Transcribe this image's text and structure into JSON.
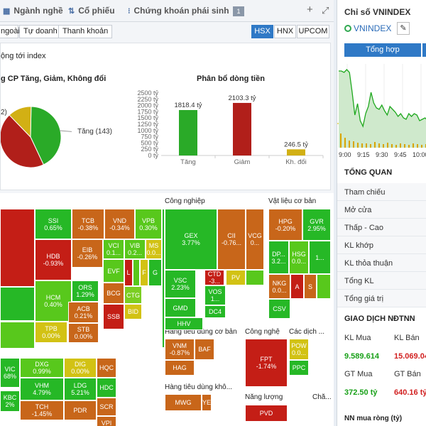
{
  "tabs": [
    {
      "label": "Ngành nghề",
      "icon": "grid-icon"
    },
    {
      "label": "Cổ phiếu",
      "icon": "sliders-icon"
    },
    {
      "label": "Chứng khoán phái sinh",
      "icon": "chart-icon"
    }
  ],
  "tab_badge": "1",
  "filters": [
    "ngoài",
    "Tự doanh",
    "Thanh khoản"
  ],
  "exchanges": [
    {
      "label": "HSX",
      "active": true
    },
    {
      "label": "HNX",
      "active": false
    },
    {
      "label": "UPCOM",
      "active": false
    }
  ],
  "card": {
    "title": "ộng tới index",
    "pie_title": "g CP Tăng, Giảm, Không đổi",
    "pie_labels": [
      "2)",
      "Tăng (143)"
    ],
    "bar_title": "Phân bổ dòng tiền"
  },
  "chart_data": [
    {
      "type": "pie",
      "title": "g CP Tăng, Giảm, Không đổi",
      "categories": [
        "Tăng",
        "Giảm",
        "Không đổi"
      ],
      "values": [
        143,
        150,
        42
      ],
      "colors": [
        "#2aaa28",
        "#b11f1a",
        "#d2b014"
      ]
    },
    {
      "type": "bar",
      "title": "Phân bổ dòng tiền",
      "categories": [
        "Tăng",
        "Giảm",
        "Kh. đổi"
      ],
      "values": [
        1818.4,
        2103.3,
        246.5
      ],
      "data_labels": [
        "1818.4 tỷ",
        "2103.3 tỷ",
        "246.5 tỷ"
      ],
      "yticks": [
        "0 tỷ",
        "250 tỷ",
        "500 tỷ",
        "750 tỷ",
        "1000 tỷ",
        "1250 tỷ",
        "1500 tỷ",
        "1750 tỷ",
        "2000 tỷ",
        "2250 tỷ",
        "2500 tỷ"
      ],
      "ylim": [
        0,
        2500
      ],
      "colors": [
        "#2aaa28",
        "#b11f1a",
        "#d2b014"
      ]
    },
    {
      "type": "line",
      "title": "VNINDEX",
      "xticks": [
        "9:00",
        "9:15",
        "9:30",
        "9:45",
        "10:00"
      ]
    }
  ],
  "treemap": {
    "sectors": [
      "Công nghiệp",
      "Vật liệu cơ bản",
      "Hàng tiêu dùng cơ bản",
      "Công nghệ",
      "Các dịch ...",
      "Hàng tiêu dùng khô...",
      "Năng lượng",
      "Chă..."
    ],
    "tiles": [
      {
        "name": "SSI",
        "change": "0.65%",
        "color": "g1"
      },
      {
        "name": "TCB",
        "change": "-0.38%",
        "color": "o1"
      },
      {
        "name": "VND",
        "change": "-0.34%",
        "color": "o1"
      },
      {
        "name": "VPB",
        "change": "0.30%",
        "color": "g2"
      },
      {
        "name": "HDB",
        "change": "-0.93%",
        "color": "r1"
      },
      {
        "name": "EIB",
        "change": "-0.26%",
        "color": "o1"
      },
      {
        "name": "VCI",
        "change": "0.1...",
        "color": "g2"
      },
      {
        "name": "VIB",
        "change": "0.2...",
        "color": "g2"
      },
      {
        "name": "MS",
        "change": "0.0...",
        "color": "y1"
      },
      {
        "name": "HCM",
        "change": "0.40%",
        "color": "g2"
      },
      {
        "name": "ORS",
        "change": "1.29%",
        "color": "g1"
      },
      {
        "name": "EVF",
        "change": "",
        "color": "g2"
      },
      {
        "name": "L",
        "change": "",
        "color": "r1"
      },
      {
        "name": "",
        "change": "",
        "color": "g2"
      },
      {
        "name": "F",
        "change": "",
        "color": "y1"
      },
      {
        "name": "G",
        "change": "",
        "color": "g1"
      },
      {
        "name": "ACB",
        "change": "0.21%",
        "color": "o1"
      },
      {
        "name": "BCG",
        "change": "",
        "color": "o1"
      },
      {
        "name": "CTG",
        "change": "",
        "color": "g3"
      },
      {
        "name": "TPB",
        "change": "0.00%",
        "color": "y1"
      },
      {
        "name": "STB",
        "change": "0.00%",
        "color": "o1"
      },
      {
        "name": "BID",
        "change": "",
        "color": "y1"
      },
      {
        "name": "SSB",
        "change": "",
        "color": "r1"
      },
      {
        "name": "GEX",
        "change": "3.77%",
        "color": "g1"
      },
      {
        "name": "CII",
        "change": "-0.76...",
        "color": "o1"
      },
      {
        "name": "VCG",
        "change": "0...",
        "color": "o1"
      },
      {
        "name": "VSC",
        "change": "2.23%",
        "color": "g1"
      },
      {
        "name": "CTD",
        "change": "-3...",
        "color": "r1"
      },
      {
        "name": "PV",
        "change": "",
        "color": "y1"
      },
      {
        "name": "",
        "change": "",
        "color": "g2"
      },
      {
        "name": "GMD",
        "change": "",
        "color": "g1"
      },
      {
        "name": "VOS",
        "change": "1...",
        "color": "g1"
      },
      {
        "name": "HHV",
        "change": "",
        "color": "g1"
      },
      {
        "name": "DC4",
        "change": "",
        "color": "g1"
      },
      {
        "name": "HPG",
        "change": "-0.20%",
        "color": "o1"
      },
      {
        "name": "GVR",
        "change": "2.95%",
        "color": "g1"
      },
      {
        "name": "DP...",
        "change": "3.2...",
        "color": "g1"
      },
      {
        "name": "HSG",
        "change": "0.0...",
        "color": "g2"
      },
      {
        "name": "1...",
        "change": "",
        "color": "g1"
      },
      {
        "name": "NKG",
        "change": "0.0...",
        "color": "o1"
      },
      {
        "name": "A",
        "change": "",
        "color": "r1"
      },
      {
        "name": "S",
        "change": "",
        "color": "o1"
      },
      {
        "name": "",
        "change": "",
        "color": "g2"
      },
      {
        "name": "CSV",
        "change": "",
        "color": "g1"
      },
      {
        "name": "VNM",
        "change": "-0.87%",
        "color": "o1"
      },
      {
        "name": "BAF",
        "change": "",
        "color": "o1"
      },
      {
        "name": "HAG",
        "change": "",
        "color": "o1"
      },
      {
        "name": "FPT",
        "change": "-1.74%",
        "color": "r1"
      },
      {
        "name": "POW",
        "change": "0.0...",
        "color": "y1"
      },
      {
        "name": "PPC",
        "change": "",
        "color": "g1"
      },
      {
        "name": "MWG",
        "change": "",
        "color": "o1"
      },
      {
        "name": "YE",
        "change": "",
        "color": "o1"
      },
      {
        "name": "PVD",
        "change": "",
        "color": "r1"
      },
      {
        "name": "VIC",
        "change": "68%",
        "color": "g1"
      },
      {
        "name": "DXG",
        "change": "0.99%",
        "color": "g2"
      },
      {
        "name": "DIG",
        "change": "0.00%",
        "color": "y1"
      },
      {
        "name": "HQC",
        "change": "",
        "color": "o1"
      },
      {
        "name": "VHM",
        "change": "4.79%",
        "color": "g1"
      },
      {
        "name": "LDG",
        "change": "5.21%",
        "color": "g1"
      },
      {
        "name": "HDC",
        "change": "",
        "color": "g1"
      },
      {
        "name": "SCR",
        "change": "",
        "color": "o1"
      },
      {
        "name": "KBC",
        "change": "2%",
        "color": "g1"
      },
      {
        "name": "TCH",
        "change": "-1.45%",
        "color": "o1"
      },
      {
        "name": "PDR",
        "change": "",
        "color": "o1"
      },
      {
        "name": "VPI",
        "change": "",
        "color": "o1"
      }
    ]
  },
  "right": {
    "title": "Chỉ số VNINDEX",
    "symbol": "VNINDEX",
    "tab": "Tổng hợp",
    "overview_title": "TỔNG QUAN",
    "overview_rows": [
      "Tham chiếu",
      "Mở cửa",
      "Thấp - Cao",
      "KL khớp",
      "KL thỏa thuận",
      "Tổng KL",
      "Tổng giá trị"
    ],
    "foreign_title": "GIAO DỊCH NĐTNN",
    "kl_mua_label": "KL Mua",
    "kl_ban_label": "KL Bán",
    "kl_mua": "9.589.614",
    "kl_ban": "15.069.04",
    "gt_mua_label": "GT Mua",
    "gt_ban_label": "GT Bán",
    "gt_mua": "372.50 tỷ",
    "gt_ban": "640.16 tỷ",
    "footer": "NN mua ròng (tỷ)",
    "colors": {
      "positive": "#17a017",
      "negative": "#d11f1f",
      "accent": "#2f79c6"
    }
  }
}
